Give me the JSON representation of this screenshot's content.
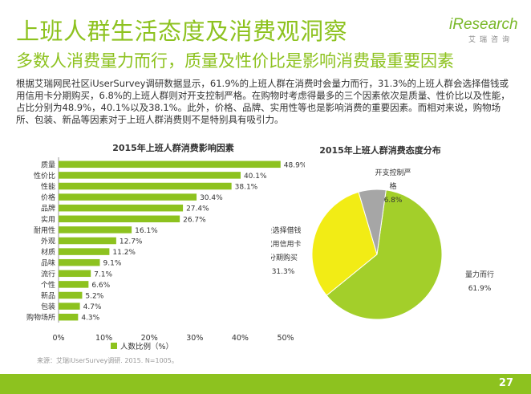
{
  "page": {
    "title": "上班人群生活态度及消费观洞察",
    "subtitle": "多数人消费量力而行，质量及性价比是影响消费最重要因素",
    "body": "根据艾瑞网民社区iUserSurvey调研数据显示，61.9%的上班人群在消费时会量力而行，31.3%的上班人群会选择借钱或用信用卡分期购买，6.8%的上班人群则对开支控制严格。在购物时考虑得最多的三个因素依次是质量、性价比以及性能，占比分别为48.9%，40.1%以及38.1%。此外，价格、品牌、实用性等也是影响消费的重要因素。而相对来说，购物场所、包装、新品等因素对于上班人群消费则不是特别具有吸引力。",
    "source": "来源：艾瑞iUserSurvey调研. 2015. N=1005。",
    "page_number": "27"
  },
  "logo": {
    "main": "iResearch",
    "sub": "艾瑞咨询"
  },
  "colors": {
    "brand": "#8dc21f",
    "bar": "#8dc21f",
    "pie_green": "#a3cf2a",
    "pie_yellow": "#f2ec15",
    "pie_gray": "#a6a6a6"
  },
  "chart_data": [
    {
      "type": "bar",
      "orientation": "horizontal",
      "title": "2015年上班人群消费影响因素",
      "categories": [
        "质量",
        "性价比",
        "性能",
        "价格",
        "品牌",
        "实用",
        "耐用性",
        "外观",
        "材质",
        "品味",
        "流行",
        "个性",
        "新品",
        "包装",
        "购物场所"
      ],
      "values": [
        48.9,
        40.1,
        38.1,
        30.4,
        27.4,
        26.7,
        16.1,
        12.7,
        11.2,
        9.1,
        7.1,
        6.6,
        5.2,
        4.7,
        4.3
      ],
      "value_labels": [
        "48.9%",
        "40.1%",
        "38.1%",
        "30.4%",
        "27.4%",
        "26.7%",
        "16.1%",
        "12.7%",
        "11.2%",
        "9.1%",
        "7.1%",
        "6.6%",
        "5.2%",
        "4.7%",
        "4.3%"
      ],
      "xlim": [
        0,
        50
      ],
      "x_ticks": [
        "0%",
        "10%",
        "20%",
        "30%",
        "40%",
        "50%"
      ],
      "legend": "人数比例（%）",
      "grid": false
    },
    {
      "type": "pie",
      "title": "2015年上班人群消费态度分布",
      "slices": [
        {
          "label_lines": [
            "量力而行"
          ],
          "value": 61.9,
          "value_label": "61.9%",
          "color": "#a3cf2a"
        },
        {
          "label_lines": [
            "会选择借钱",
            "或用信用卡",
            "分期购买"
          ],
          "value": 31.3,
          "value_label": "31.3%",
          "color": "#f2ec15"
        },
        {
          "label_lines": [
            "开支控制严",
            "格"
          ],
          "value": 6.8,
          "value_label": "6.8%",
          "color": "#a6a6a6"
        }
      ]
    }
  ]
}
